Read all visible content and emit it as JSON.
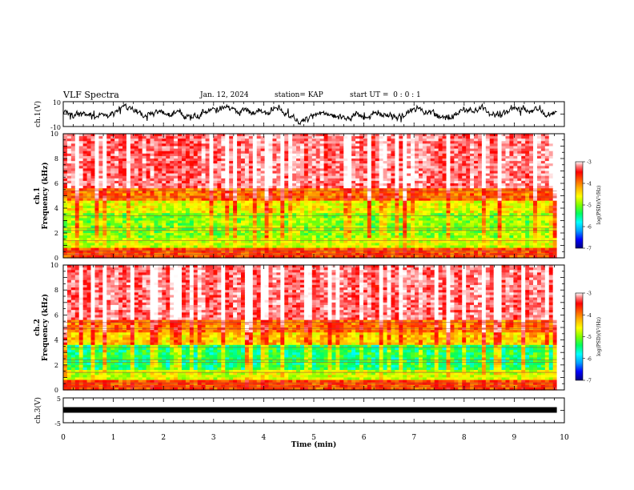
{
  "header": {
    "title": "VLF Spectra",
    "date": "Jan. 12, 2024",
    "station": "station= KAP",
    "start": "start UT =  0 : 0 : 1"
  },
  "chart_data": [
    {
      "type": "line",
      "panel": "ch1-waveform",
      "ylabel": "ch.1(V)",
      "ylim": [
        -10,
        10
      ],
      "ytick_labels": [
        "-10",
        "10"
      ],
      "xlim": [
        0,
        10
      ],
      "color": "#000000",
      "description_values": {
        "x_span_min": [
          0,
          9.85
        ]
      }
    },
    {
      "type": "heatmap",
      "panel": "ch1-spectrogram",
      "ylabel": "ch.1\nFrequency (kHz)",
      "ylim": [
        0,
        10
      ],
      "ytick_labels": [
        "0",
        "2",
        "4",
        "6",
        "8",
        "10"
      ],
      "xlim": [
        0,
        10
      ],
      "x_span_min": [
        0,
        9.85
      ],
      "colorbar": {
        "label": "log(PSD)(V²/Hz)",
        "range": [
          -7,
          -3
        ],
        "tick_labels": [
          "-3",
          "-4",
          "-5",
          "-6",
          "-7"
        ]
      }
    },
    {
      "type": "heatmap",
      "panel": "ch2-spectrogram",
      "ylabel": "ch.2\nFrequency (kHz)",
      "ylim": [
        0,
        10
      ],
      "ytick_labels": [
        "0",
        "2",
        "4",
        "6",
        "8",
        "10"
      ],
      "xlim": [
        0,
        10
      ],
      "x_span_min": [
        0,
        9.85
      ],
      "colorbar": {
        "label": "log(PSD)(V²/Hz)",
        "range": [
          -7,
          -3
        ],
        "tick_labels": [
          "-3",
          "-4",
          "-5",
          "-6",
          "-7"
        ]
      }
    },
    {
      "type": "line",
      "panel": "ch3-waveform",
      "ylabel": "ch.3(V)",
      "ylim": [
        -5,
        5
      ],
      "ytick_labels": [
        "-5",
        "5"
      ],
      "xlim": [
        0,
        10
      ],
      "xlabel": "Time (min)",
      "xtick_labels": [
        "0",
        "1",
        "2",
        "3",
        "4",
        "5",
        "6",
        "7",
        "8",
        "9",
        "10"
      ],
      "color": "#000000"
    }
  ],
  "colormap": [
    "#000080",
    "#0000ff",
    "#00a0ff",
    "#00ffff",
    "#00ff60",
    "#80ff00",
    "#ffff00",
    "#ffb000",
    "#ff5000",
    "#ff0000",
    "#ff8080",
    "#ffffff"
  ]
}
